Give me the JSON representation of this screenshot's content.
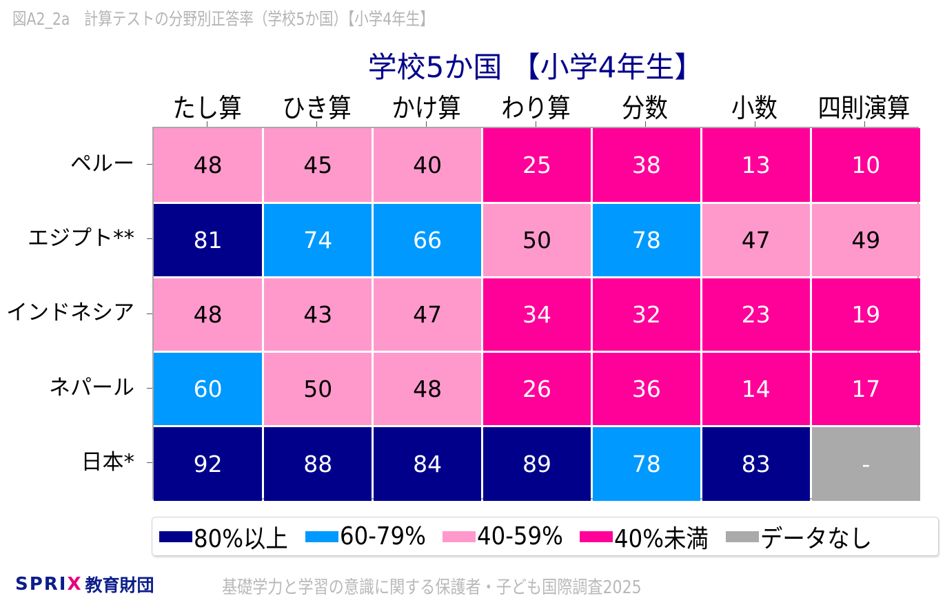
{
  "figure": {
    "caption": "図A2_2a　計算テストの分野別正答率（学校5か国）【小学4年生】",
    "title": "学校5か国 【小学4年生】"
  },
  "columns": [
    "たし算",
    "ひき算",
    "かけ算",
    "わり算",
    "分数",
    "小数",
    "四則演算"
  ],
  "rows": [
    {
      "label": "ペルー",
      "values": [
        "48",
        "45",
        "40",
        "25",
        "38",
        "13",
        "10"
      ]
    },
    {
      "label": "エジプト**",
      "values": [
        "81",
        "74",
        "66",
        "50",
        "78",
        "47",
        "49"
      ]
    },
    {
      "label": "インドネシア",
      "values": [
        "48",
        "43",
        "47",
        "34",
        "32",
        "23",
        "19"
      ]
    },
    {
      "label": "ネパール",
      "values": [
        "60",
        "50",
        "48",
        "26",
        "36",
        "14",
        "17"
      ]
    },
    {
      "label": "日本*",
      "values": [
        "92",
        "88",
        "84",
        "89",
        "78",
        "83",
        "-"
      ]
    }
  ],
  "legend": [
    {
      "label": "80%以上",
      "color": "#00008b",
      "text_color": "#ffffff"
    },
    {
      "label": "60-79%",
      "color": "#0099ff",
      "text_color": "#ffffff"
    },
    {
      "label": "40-59%",
      "color": "#ff99cc",
      "text_color": "#000000"
    },
    {
      "label": "40%未満",
      "color": "#ff0099",
      "text_color": "#ffffff"
    },
    {
      "label": "データなし",
      "color": "#aaaaaa",
      "text_color": "#ffffff"
    }
  ],
  "footer": {
    "logo_brand": "SPRI",
    "logo_brand_x": "X",
    "logo_org": "教育財団",
    "source": "基礎学力と学習の意識に関する保護者・子ども国際調査2025"
  },
  "chart_data": {
    "type": "heatmap",
    "title": "学校5か国 【小学4年生】",
    "subtitle": "図A2_2a　計算テストの分野別正答率（学校5か国）【小学4年生】",
    "xlabel": "",
    "ylabel": "",
    "x_categories": [
      "たし算",
      "ひき算",
      "かけ算",
      "わり算",
      "分数",
      "小数",
      "四則演算"
    ],
    "y_categories": [
      "ペルー",
      "エジプト**",
      "インドネシア",
      "ネパール",
      "日本*"
    ],
    "values": [
      [
        48,
        45,
        40,
        25,
        38,
        13,
        10
      ],
      [
        81,
        74,
        66,
        50,
        78,
        47,
        49
      ],
      [
        48,
        43,
        47,
        34,
        32,
        23,
        19
      ],
      [
        60,
        50,
        48,
        26,
        36,
        14,
        17
      ],
      [
        92,
        88,
        84,
        89,
        78,
        83,
        null
      ]
    ],
    "unit": "%",
    "color_bins": [
      {
        "label": "80%以上",
        "min": 80,
        "max": 100,
        "color": "#00008b"
      },
      {
        "label": "60-79%",
        "min": 60,
        "max": 79,
        "color": "#0099ff"
      },
      {
        "label": "40-59%",
        "min": 40,
        "max": 59,
        "color": "#ff99cc"
      },
      {
        "label": "40%未満",
        "min": 0,
        "max": 39,
        "color": "#ff0099"
      },
      {
        "label": "データなし",
        "color": "#aaaaaa"
      }
    ],
    "legend_position": "bottom",
    "grid": true
  }
}
